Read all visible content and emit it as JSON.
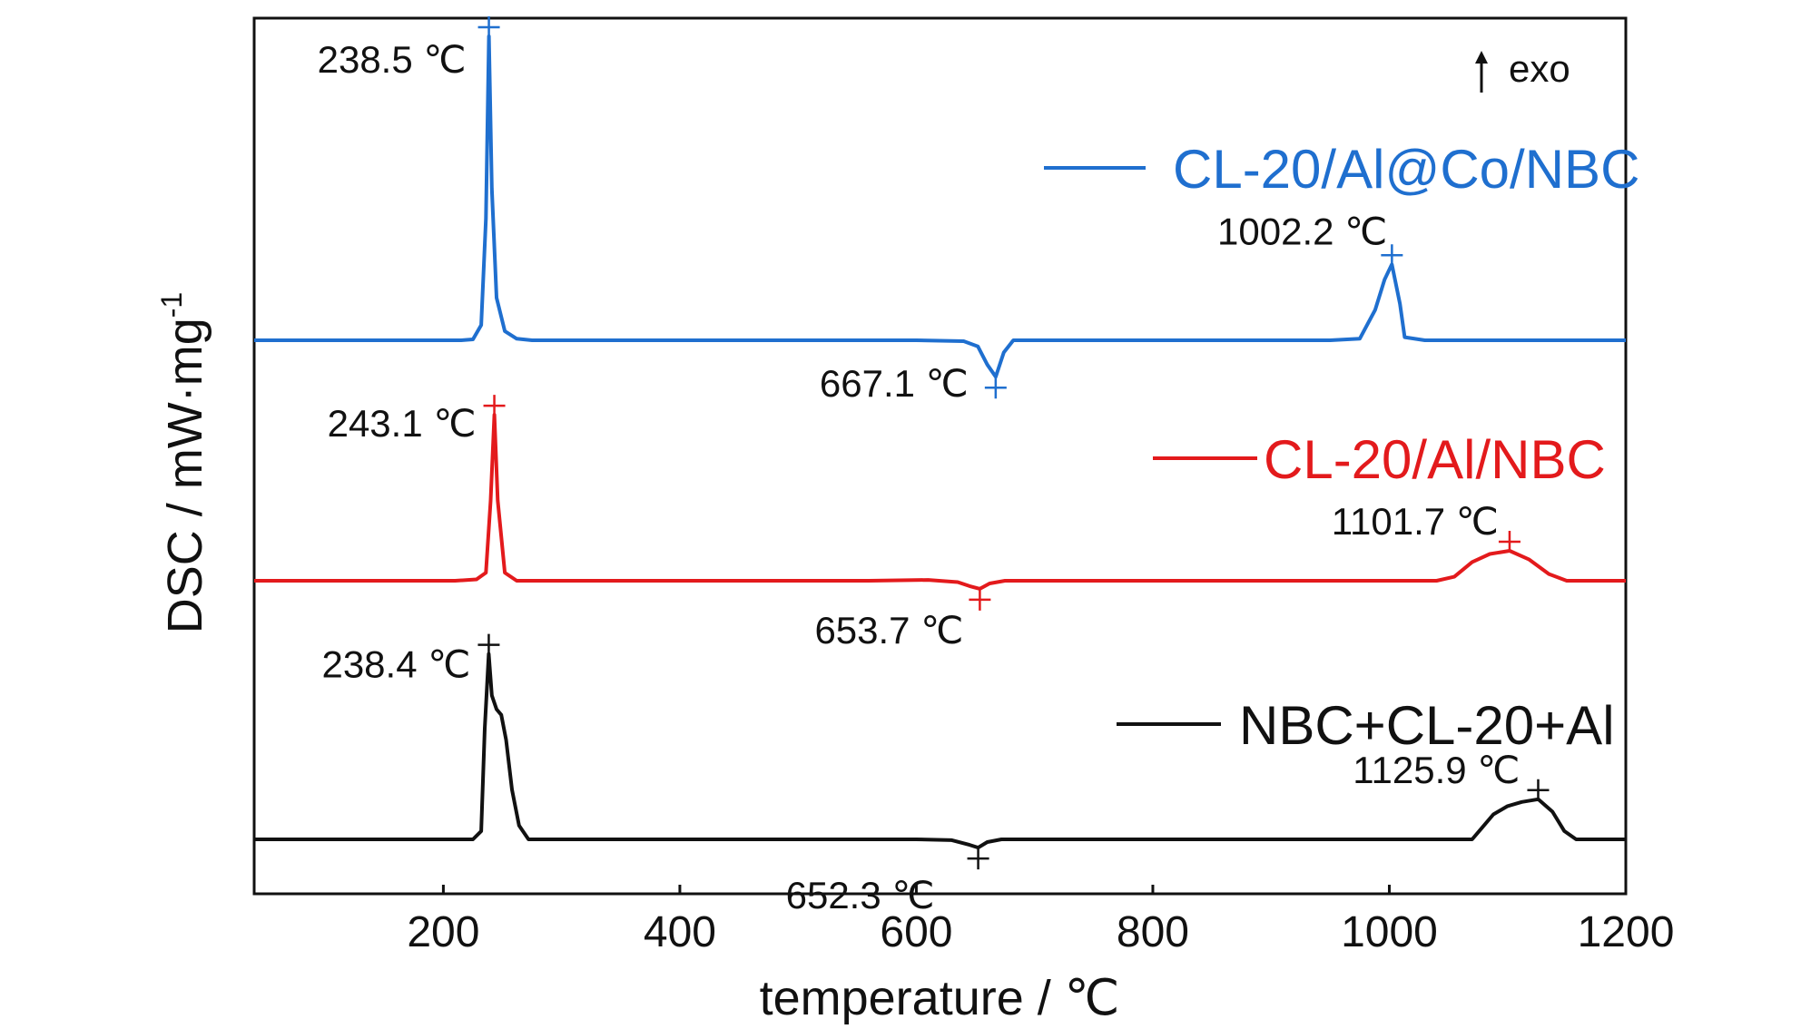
{
  "chart_data": {
    "type": "line",
    "xlabel": "temperature / ℃",
    "ylabel_main": "DSC / mW·mg",
    "ylabel_sup": "-1",
    "xlim": [
      40,
      1200
    ],
    "xticks": [
      200,
      400,
      600,
      800,
      1000,
      1200
    ],
    "y_ticks_shown": false,
    "exo_label": "exo",
    "series": [
      {
        "name": "CL-20/Al@Co/NBC",
        "color": "#1f6fcf",
        "baseline": 0,
        "points": [
          [
            40,
            0
          ],
          [
            215,
            0
          ],
          [
            225,
            0.3
          ],
          [
            232,
            5
          ],
          [
            236,
            40
          ],
          [
            238.5,
            100
          ],
          [
            241,
            50
          ],
          [
            245,
            14
          ],
          [
            252,
            3
          ],
          [
            262,
            0.5
          ],
          [
            275,
            0
          ],
          [
            600,
            0
          ],
          [
            640,
            -0.3
          ],
          [
            652,
            -2
          ],
          [
            660,
            -8
          ],
          [
            667.1,
            -12
          ],
          [
            674,
            -4
          ],
          [
            682,
            0
          ],
          [
            760,
            0
          ],
          [
            950,
            0
          ],
          [
            975,
            0.5
          ],
          [
            988,
            10
          ],
          [
            996,
            20
          ],
          [
            1002.2,
            25
          ],
          [
            1009,
            12
          ],
          [
            1013,
            1
          ],
          [
            1030,
            0
          ],
          [
            1200,
            0
          ]
        ],
        "annotations": [
          {
            "label": "238.5 ℃",
            "x": 238.5,
            "y": 100
          },
          {
            "label": "667.1 ℃",
            "x": 667.1,
            "y": -12
          },
          {
            "label": "1002.2 ℃",
            "x": 1002.2,
            "y": 25
          }
        ]
      },
      {
        "name": "CL-20/Al/NBC",
        "color": "#e31a1c",
        "baseline": 0,
        "points": [
          [
            40,
            0
          ],
          [
            210,
            0
          ],
          [
            228,
            0.5
          ],
          [
            236,
            3
          ],
          [
            240,
            30
          ],
          [
            243.1,
            62
          ],
          [
            246,
            30
          ],
          [
            252,
            3
          ],
          [
            262,
            0
          ],
          [
            560,
            0
          ],
          [
            610,
            0.3
          ],
          [
            635,
            -0.5
          ],
          [
            645,
            -2
          ],
          [
            653.7,
            -3
          ],
          [
            662,
            -1
          ],
          [
            675,
            0
          ],
          [
            1040,
            0
          ],
          [
            1055,
            1.5
          ],
          [
            1070,
            7
          ],
          [
            1085,
            10
          ],
          [
            1101.7,
            11.2
          ],
          [
            1118,
            8
          ],
          [
            1135,
            2.5
          ],
          [
            1150,
            0
          ],
          [
            1200,
            0
          ]
        ],
        "annotations": [
          {
            "label": "243.1 ℃",
            "x": 243.1,
            "y": 62
          },
          {
            "label": "653.7 ℃",
            "x": 653.7,
            "y": -3
          },
          {
            "label": "1101.7 ℃",
            "x": 1101.7,
            "y": 11.2
          }
        ]
      },
      {
        "name": "NBC+CL-20+Al",
        "color": "#111111",
        "baseline": 0,
        "points": [
          [
            40,
            0
          ],
          [
            225,
            0
          ],
          [
            232,
            3
          ],
          [
            235,
            40
          ],
          [
            238.4,
            67
          ],
          [
            241,
            52
          ],
          [
            245,
            47
          ],
          [
            249,
            45
          ],
          [
            253,
            36
          ],
          [
            258,
            18
          ],
          [
            264,
            5
          ],
          [
            272,
            0
          ],
          [
            600,
            0
          ],
          [
            630,
            -0.3
          ],
          [
            645,
            -2
          ],
          [
            652.3,
            -3
          ],
          [
            660,
            -1
          ],
          [
            672,
            0
          ],
          [
            1070,
            0
          ],
          [
            1078,
            4
          ],
          [
            1088,
            9
          ],
          [
            1100,
            12
          ],
          [
            1112,
            13.5
          ],
          [
            1125.9,
            14.5
          ],
          [
            1138,
            10
          ],
          [
            1148,
            3
          ],
          [
            1158,
            0
          ],
          [
            1200,
            0
          ]
        ],
        "annotations": [
          {
            "label": "238.4 ℃",
            "x": 238.4,
            "y": 67
          },
          {
            "label": "652.3 ℃",
            "x": 652.3,
            "y": -3
          },
          {
            "label": "1125.9 ℃",
            "x": 1125.9,
            "y": 14.5
          }
        ]
      }
    ]
  }
}
